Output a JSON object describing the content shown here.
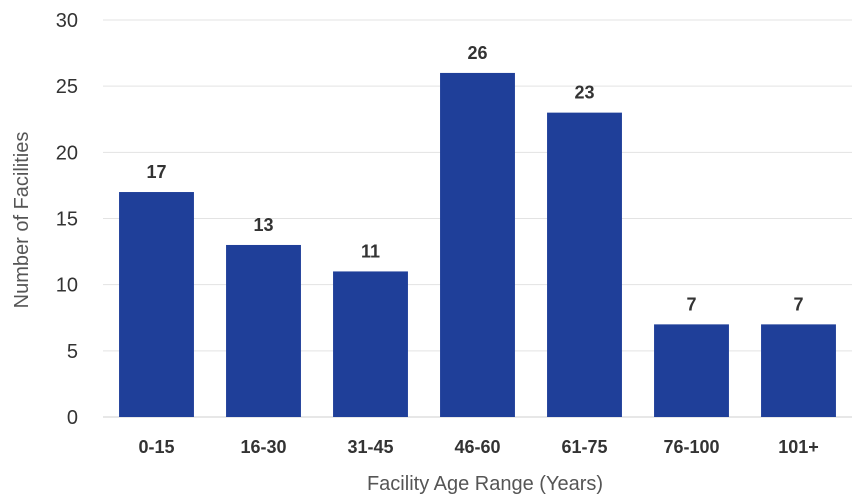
{
  "chart_data": {
    "type": "bar",
    "categories": [
      "0-15",
      "16-30",
      "31-45",
      "46-60",
      "61-75",
      "76-100",
      "101+"
    ],
    "values": [
      17,
      13,
      11,
      26,
      23,
      7,
      7
    ],
    "title": "",
    "xlabel": "Facility Age Range (Years)",
    "ylabel": "Number of Facilities",
    "ylim": [
      0,
      30
    ],
    "yticks": [
      0,
      5,
      10,
      15,
      20,
      25,
      30
    ],
    "grid": true,
    "legend": "none",
    "bar_color": "#1f3f99"
  }
}
